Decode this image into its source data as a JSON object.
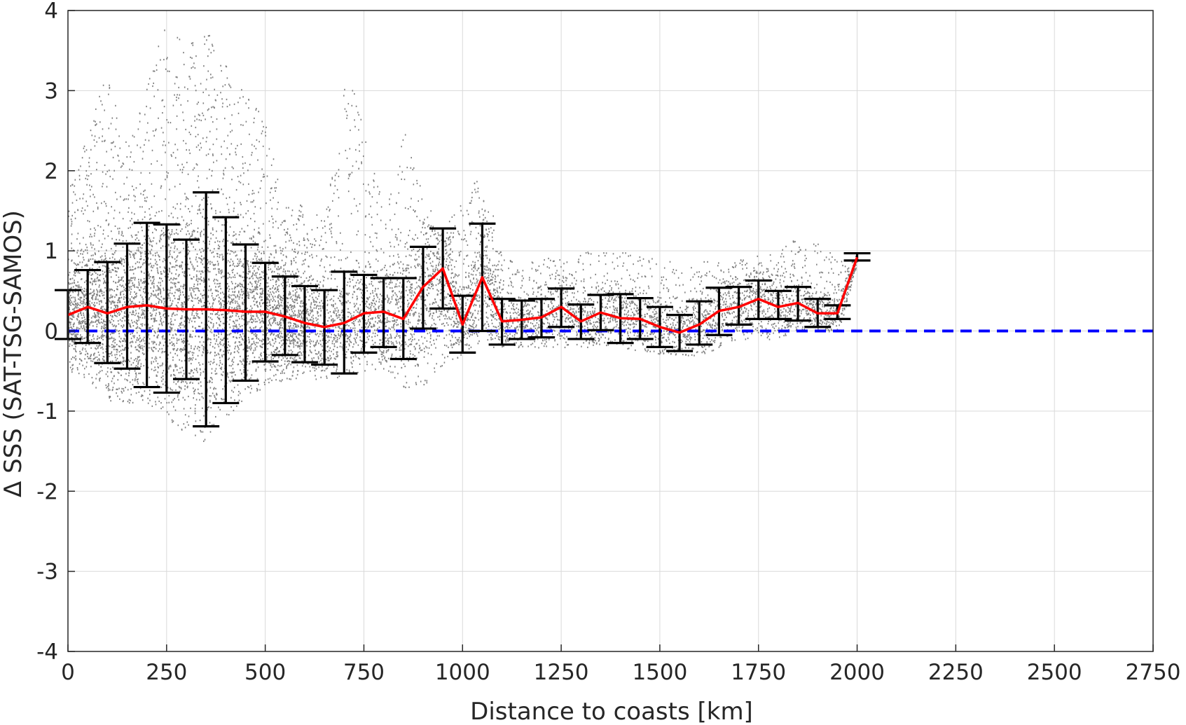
{
  "chart_data": {
    "type": "scatter",
    "xlabel": "Distance to coasts [km]",
    "ylabel": "Δ SSS (SAT-TSG-SAMOS)",
    "xlim": [
      0,
      2750
    ],
    "ylim": [
      -4,
      4
    ],
    "xticks": [
      0,
      250,
      500,
      750,
      1000,
      1250,
      1500,
      1750,
      2000,
      2250,
      2500,
      2750
    ],
    "yticks": [
      -4,
      -3,
      -2,
      -1,
      0,
      1,
      2,
      3,
      4
    ],
    "grid": true,
    "legend": "none",
    "colors": {
      "scatter": "#808080",
      "mean_line": "#ff0000",
      "error_bars": "#000000",
      "zero_line": "#0000ff",
      "grid": "#d9d9d9"
    },
    "scatter_envelope": [
      {
        "x": 0,
        "low": -0.5,
        "high": 1.8
      },
      {
        "x": 50,
        "low": -0.6,
        "high": 2.5
      },
      {
        "x": 100,
        "low": -0.9,
        "high": 3.3
      },
      {
        "x": 150,
        "low": -0.9,
        "high": 2.3
      },
      {
        "x": 200,
        "low": -0.9,
        "high": 3.1
      },
      {
        "x": 250,
        "low": -1.1,
        "high": 4.0
      },
      {
        "x": 300,
        "low": -1.3,
        "high": 3.6
      },
      {
        "x": 350,
        "low": -1.4,
        "high": 3.8
      },
      {
        "x": 400,
        "low": -1.1,
        "high": 3.3
      },
      {
        "x": 450,
        "low": -0.8,
        "high": 3.0
      },
      {
        "x": 500,
        "low": -0.7,
        "high": 2.6
      },
      {
        "x": 550,
        "low": -0.6,
        "high": 1.6
      },
      {
        "x": 600,
        "low": -0.6,
        "high": 1.6
      },
      {
        "x": 650,
        "low": -0.6,
        "high": 1.4
      },
      {
        "x": 700,
        "low": -0.6,
        "high": 3.2
      },
      {
        "x": 750,
        "low": -0.5,
        "high": 2.7
      },
      {
        "x": 800,
        "low": -0.5,
        "high": 1.4
      },
      {
        "x": 850,
        "low": -0.7,
        "high": 2.5
      },
      {
        "x": 900,
        "low": -0.7,
        "high": 1.7
      },
      {
        "x": 950,
        "low": -0.4,
        "high": 1.3
      },
      {
        "x": 1000,
        "low": -0.3,
        "high": 1.7
      },
      {
        "x": 1050,
        "low": -0.2,
        "high": 2.0
      },
      {
        "x": 1100,
        "low": -0.2,
        "high": 0.9
      },
      {
        "x": 1200,
        "low": -0.2,
        "high": 0.9
      },
      {
        "x": 1300,
        "low": -0.2,
        "high": 1.0
      },
      {
        "x": 1400,
        "low": -0.2,
        "high": 1.0
      },
      {
        "x": 1500,
        "low": -0.3,
        "high": 0.9
      },
      {
        "x": 1600,
        "low": -0.3,
        "high": 0.9
      },
      {
        "x": 1700,
        "low": -0.1,
        "high": 0.9
      },
      {
        "x": 1800,
        "low": -0.1,
        "high": 1.0
      },
      {
        "x": 1850,
        "low": 0.0,
        "high": 1.2
      },
      {
        "x": 1900,
        "low": 0.0,
        "high": 1.1
      },
      {
        "x": 1950,
        "low": 0.0,
        "high": 0.9
      },
      {
        "x": 2000,
        "low": 0.85,
        "high": 0.95
      }
    ],
    "series": [
      {
        "x": [
          0,
          50,
          100,
          150,
          200,
          250,
          300,
          350,
          400,
          450,
          500,
          550,
          600,
          650,
          700,
          750,
          800,
          850,
          900,
          950,
          1000,
          1050,
          1100,
          1150,
          1200,
          1250,
          1300,
          1350,
          1400,
          1450,
          1500,
          1550,
          1600,
          1650,
          1700,
          1750,
          1800,
          1850,
          1900,
          1950,
          2000
        ],
        "mean": [
          0.2,
          0.3,
          0.22,
          0.3,
          0.32,
          0.28,
          0.27,
          0.27,
          0.26,
          0.24,
          0.24,
          0.18,
          0.1,
          0.05,
          0.1,
          0.22,
          0.24,
          0.15,
          0.55,
          0.78,
          0.08,
          0.67,
          0.12,
          0.14,
          0.17,
          0.3,
          0.12,
          0.23,
          0.16,
          0.15,
          0.05,
          -0.02,
          0.08,
          0.25,
          0.3,
          0.4,
          0.3,
          0.35,
          0.22,
          0.22,
          0.92
        ],
        "lower": [
          -0.1,
          -0.15,
          -0.4,
          -0.47,
          -0.7,
          -0.77,
          -0.6,
          -1.19,
          -0.9,
          -0.62,
          -0.38,
          -0.3,
          -0.39,
          -0.42,
          -0.53,
          -0.27,
          -0.2,
          -0.35,
          0.03,
          0.28,
          -0.27,
          0.0,
          -0.17,
          -0.1,
          -0.08,
          0.05,
          -0.1,
          0.01,
          -0.15,
          -0.1,
          -0.2,
          -0.25,
          -0.17,
          -0.05,
          0.08,
          0.15,
          0.15,
          0.13,
          0.05,
          0.15,
          0.88
        ],
        "upper": [
          0.51,
          0.76,
          0.86,
          1.09,
          1.35,
          1.33,
          1.14,
          1.73,
          1.42,
          1.08,
          0.85,
          0.68,
          0.56,
          0.51,
          0.74,
          0.7,
          0.66,
          0.66,
          1.05,
          1.28,
          0.44,
          1.34,
          0.4,
          0.38,
          0.4,
          0.53,
          0.33,
          0.45,
          0.46,
          0.41,
          0.3,
          0.2,
          0.37,
          0.54,
          0.55,
          0.63,
          0.5,
          0.55,
          0.4,
          0.32,
          0.97
        ]
      },
      {
        "x": [
          0,
          2750
        ],
        "y": [
          0,
          0
        ]
      }
    ]
  }
}
